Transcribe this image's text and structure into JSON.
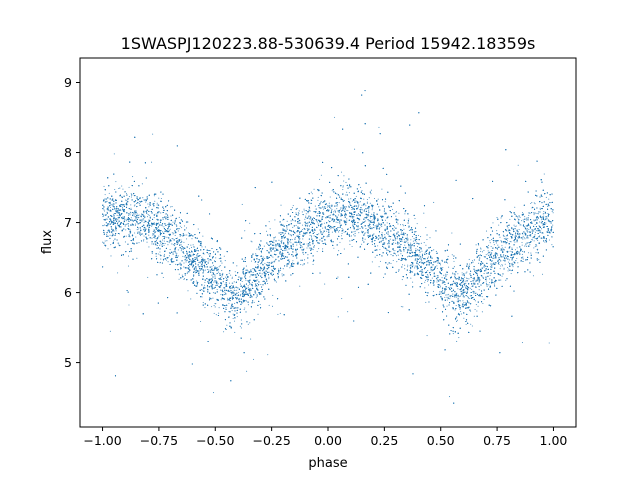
{
  "chart_data": {
    "type": "scatter",
    "title": "1SWASPJ120223.88-530639.4 Period 15942.18359s",
    "xlabel": "phase",
    "ylabel": "flux",
    "xlim": [
      -1.1,
      1.1
    ],
    "ylim": [
      4.08,
      9.35
    ],
    "x_ticks": [
      -1.0,
      -0.75,
      -0.5,
      -0.25,
      0.0,
      0.25,
      0.5,
      0.75,
      1.0
    ],
    "x_tick_labels": [
      "−1.00",
      "−0.75",
      "−0.50",
      "−0.25",
      "0.00",
      "0.25",
      "0.50",
      "0.75",
      "1.00"
    ],
    "y_ticks": [
      5,
      6,
      7,
      8,
      9
    ],
    "y_tick_labels": [
      "5",
      "6",
      "7",
      "8",
      "9"
    ],
    "grid": false,
    "legend": "none",
    "point_color": "#1f77b4",
    "phase_range": [
      -1.0,
      1.0
    ],
    "trend": {
      "phase": [
        -1.0,
        -0.9,
        -0.8,
        -0.7,
        -0.6,
        -0.5,
        -0.42,
        -0.3,
        -0.2,
        -0.1,
        0.0,
        0.1,
        0.2,
        0.3,
        0.4,
        0.5,
        0.58,
        0.7,
        0.8,
        0.9,
        1.0
      ],
      "flux": [
        7.05,
        7.1,
        7.0,
        6.8,
        6.5,
        6.15,
        5.9,
        6.3,
        6.65,
        6.9,
        7.05,
        7.1,
        7.0,
        6.8,
        6.5,
        6.15,
        5.9,
        6.3,
        6.65,
        6.9,
        7.05
      ],
      "scatter": 0.22,
      "outlier_fraction": 0.06,
      "outlier_range": [
        4.3,
        9.1
      ]
    },
    "n_points": 16000
  }
}
